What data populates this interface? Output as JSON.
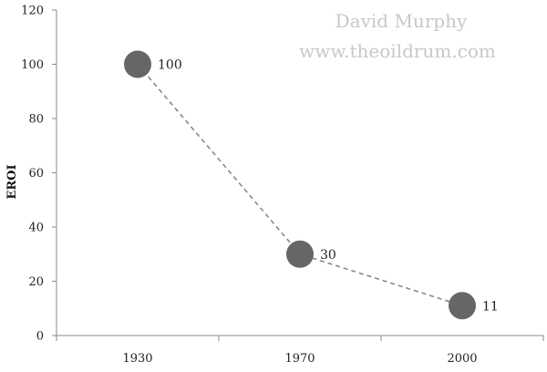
{
  "chart_data": {
    "type": "line",
    "title": "",
    "xlabel": "",
    "ylabel": "EROI",
    "categories": [
      "1930",
      "1970",
      "2000"
    ],
    "values": [
      100,
      30,
      11
    ],
    "data_labels": [
      "100",
      "30",
      "11"
    ],
    "ylim": [
      0,
      120
    ],
    "yticks": [
      "0",
      "20",
      "40",
      "60",
      "80",
      "100",
      "120"
    ],
    "grid": false,
    "legend": "none",
    "line_style": "dashed",
    "marker": "circle",
    "marker_color": "#666666",
    "line_color": "#888888",
    "watermark": [
      "David Murphy",
      "www.theoildrum.com"
    ]
  }
}
